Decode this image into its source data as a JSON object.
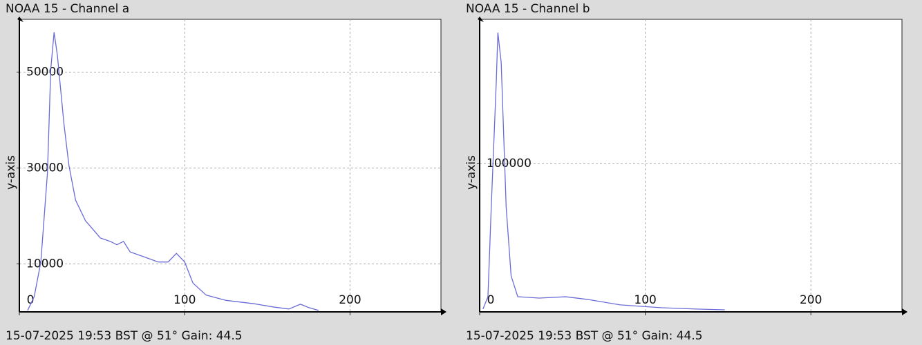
{
  "chart_data": [
    {
      "type": "line",
      "title": "NOAA 15 - Channel a",
      "caption": "15-07-2025 19:53 BST @ 51° Gain: 44.5",
      "ylabel": "y-axis",
      "xlim": [
        0,
        255
      ],
      "xticks": [
        0,
        100,
        200
      ],
      "ylim": [
        0,
        61000
      ],
      "yticks": [
        10000,
        30000,
        50000
      ],
      "grid": true,
      "x": [
        5,
        9,
        13,
        17,
        19,
        21,
        23,
        27,
        30,
        34,
        40,
        49,
        55,
        59,
        63,
        67,
        76,
        84,
        90,
        95,
        100,
        105,
        113,
        125,
        142,
        154,
        163,
        170,
        175,
        181
      ],
      "series": [
        {
          "color": "#6a6ad8",
          "values": [
            300,
            3200,
            10400,
            29000,
            50600,
            58300,
            53500,
            39100,
            30500,
            23300,
            19000,
            15400,
            14700,
            14000,
            14700,
            12500,
            11400,
            10400,
            10400,
            12200,
            10400,
            6000,
            3500,
            2400,
            1700,
            1000,
            600,
            1600,
            900,
            300
          ]
        }
      ]
    },
    {
      "type": "line",
      "title": "NOAA 15 - Channel b",
      "caption": "15-07-2025 19:53 BST @ 51° Gain: 44.5",
      "ylabel": "y-axis",
      "xlim": [
        0,
        255
      ],
      "xticks": [
        0,
        100,
        200
      ],
      "ylim": [
        0,
        197000
      ],
      "yticks": [
        100000
      ],
      "grid": true,
      "x": [
        2,
        5,
        7,
        10,
        11,
        13,
        16,
        19,
        23,
        36,
        52,
        65,
        85,
        110,
        131,
        148
      ],
      "series": [
        {
          "color": "#6a6ad8",
          "values": [
            1900,
            10200,
            70700,
            154000,
            188000,
            168000,
            70700,
            24200,
            10200,
            9300,
            10200,
            8400,
            4700,
            2800,
            1900,
            1400
          ]
        }
      ]
    }
  ]
}
